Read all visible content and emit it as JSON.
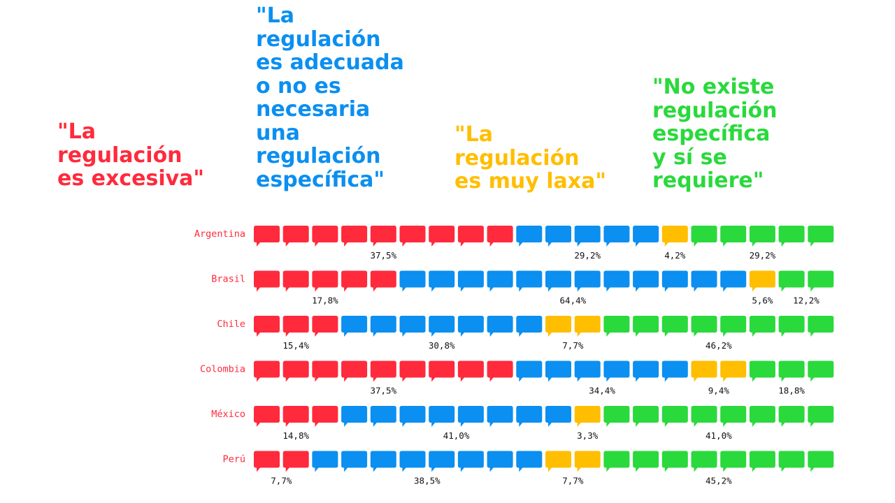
{
  "colors": {
    "excesiva": "#ff2a3c",
    "adecuada": "#0b8ff0",
    "laxa": "#ffbe00",
    "requiere": "#2ad93c",
    "text": "#111111"
  },
  "headers": {
    "excesiva": "\"La\nregulación\nes excesiva\"",
    "adecuada": "\"La\nregulación\nes adecuada\no no es\nnecesaria\nuna\nregulación\nespecífica\"",
    "laxa": "\"La\nregulación\nes muy laxa\"",
    "requiere": "\"No existe\nregulación\nespecífica\ny sí se\nrequiere\""
  },
  "chart_data": {
    "type": "bar",
    "subtype": "stacked icon-array (20 speech-bubble icons per country)",
    "icons_per_row": 20,
    "icon_name": "speech-bubble-icon",
    "series": [
      {
        "name": "\"La regulación es excesiva\"",
        "key": "excesiva"
      },
      {
        "name": "\"La regulación es adecuada o no es necesaria una regulación específica\"",
        "key": "adecuada"
      },
      {
        "name": "\"La regulación es muy laxa\"",
        "key": "laxa"
      },
      {
        "name": "\"No existe regulación específica y sí se requiere\"",
        "key": "requiere"
      }
    ],
    "rows": [
      {
        "country": "Argentina",
        "counts": [
          9,
          5,
          1,
          5
        ],
        "labels": [
          "37,5%",
          "29,2%",
          "4,2%",
          "29,2%"
        ],
        "values": [
          37.5,
          29.2,
          4.2,
          29.2
        ]
      },
      {
        "country": "Brasil",
        "counts": [
          5,
          12,
          1,
          2
        ],
        "labels": [
          "17,8%",
          "64,4%",
          "5,6%",
          "12,2%"
        ],
        "values": [
          17.8,
          64.4,
          5.6,
          12.2
        ]
      },
      {
        "country": "Chile",
        "counts": [
          3,
          7,
          2,
          8
        ],
        "labels": [
          "15,4%",
          "30,8%",
          "7,7%",
          "46,2%"
        ],
        "values": [
          15.4,
          30.8,
          7.7,
          46.2
        ]
      },
      {
        "country": "Colombia",
        "counts": [
          9,
          6,
          2,
          3
        ],
        "labels": [
          "37,5%",
          "34,4%",
          "9,4%",
          "18,8%"
        ],
        "values": [
          37.5,
          34.4,
          9.4,
          18.8
        ]
      },
      {
        "country": "México",
        "counts": [
          3,
          8,
          1,
          8
        ],
        "labels": [
          "14,8%",
          "41,0%",
          "3,3%",
          "41,0%"
        ],
        "values": [
          14.8,
          41.0,
          3.3,
          41.0
        ]
      },
      {
        "country": "Perú",
        "counts": [
          2,
          8,
          2,
          8
        ],
        "labels": [
          "7,7%",
          "38,5%",
          "7,7%",
          "45,2%"
        ],
        "values": [
          7.7,
          38.5,
          7.7,
          45.2
        ]
      }
    ]
  }
}
